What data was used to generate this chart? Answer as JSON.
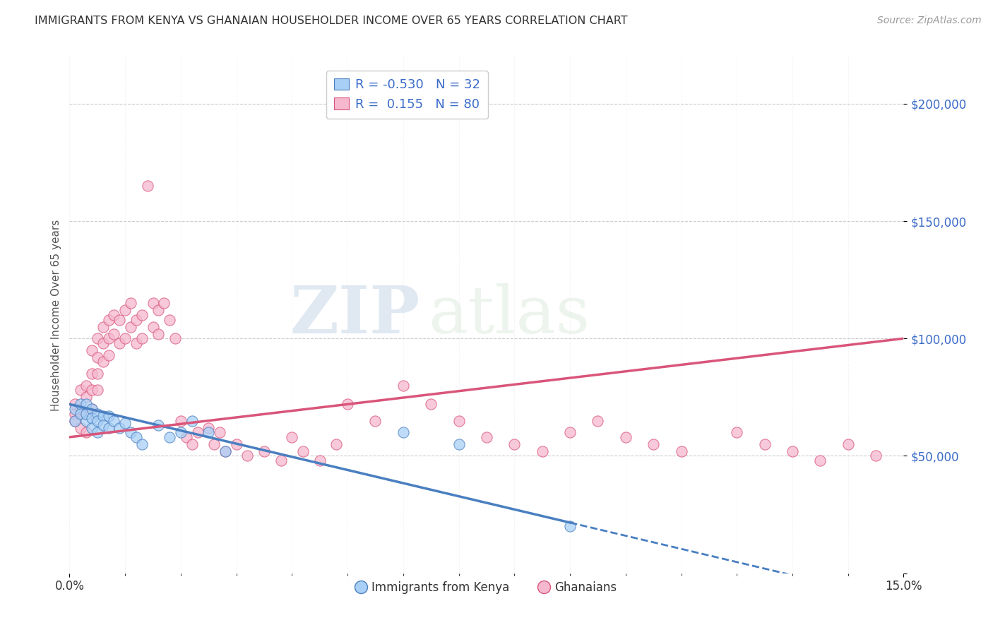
{
  "title": "IMMIGRANTS FROM KENYA VS GHANAIAN HOUSEHOLDER INCOME OVER 65 YEARS CORRELATION CHART",
  "source": "Source: ZipAtlas.com",
  "ylabel": "Householder Income Over 65 years",
  "xlim": [
    0.0,
    0.15
  ],
  "ylim": [
    0,
    220000
  ],
  "yticks": [
    0,
    50000,
    100000,
    150000,
    200000
  ],
  "ytick_labels": [
    "",
    "$50,000",
    "$100,000",
    "$150,000",
    "$200,000"
  ],
  "kenya_color": "#a8cff5",
  "kenya_color_dark": "#4a7fc1",
  "ghana_color": "#f5b8ce",
  "ghana_color_dark": "#d9557a",
  "R_kenya": -0.53,
  "N_kenya": 32,
  "R_ghana": 0.155,
  "N_ghana": 80,
  "kenya_intercept": 72000,
  "kenya_slope": -560000,
  "ghana_intercept": 58000,
  "ghana_slope": 280000,
  "kenya_scatter_x": [
    0.001,
    0.001,
    0.002,
    0.002,
    0.003,
    0.003,
    0.003,
    0.004,
    0.004,
    0.004,
    0.005,
    0.005,
    0.005,
    0.006,
    0.006,
    0.007,
    0.007,
    0.008,
    0.009,
    0.01,
    0.011,
    0.012,
    0.013,
    0.016,
    0.018,
    0.02,
    0.022,
    0.025,
    0.028,
    0.06,
    0.07,
    0.09
  ],
  "kenya_scatter_y": [
    70000,
    65000,
    72000,
    68000,
    72000,
    65000,
    68000,
    70000,
    66000,
    62000,
    68000,
    65000,
    60000,
    67000,
    63000,
    67000,
    62000,
    65000,
    62000,
    64000,
    60000,
    58000,
    55000,
    63000,
    58000,
    60000,
    65000,
    60000,
    52000,
    60000,
    55000,
    20000
  ],
  "ghana_scatter_x": [
    0.001,
    0.001,
    0.001,
    0.002,
    0.002,
    0.002,
    0.002,
    0.003,
    0.003,
    0.003,
    0.003,
    0.004,
    0.004,
    0.004,
    0.004,
    0.005,
    0.005,
    0.005,
    0.005,
    0.006,
    0.006,
    0.006,
    0.007,
    0.007,
    0.007,
    0.008,
    0.008,
    0.009,
    0.009,
    0.01,
    0.01,
    0.011,
    0.011,
    0.012,
    0.012,
    0.013,
    0.013,
    0.014,
    0.015,
    0.015,
    0.016,
    0.016,
    0.017,
    0.018,
    0.019,
    0.02,
    0.021,
    0.022,
    0.023,
    0.025,
    0.026,
    0.027,
    0.028,
    0.03,
    0.032,
    0.035,
    0.038,
    0.04,
    0.042,
    0.045,
    0.048,
    0.05,
    0.055,
    0.06,
    0.065,
    0.07,
    0.075,
    0.08,
    0.085,
    0.09,
    0.095,
    0.1,
    0.105,
    0.11,
    0.12,
    0.125,
    0.13,
    0.135,
    0.14,
    0.145
  ],
  "ghana_scatter_y": [
    68000,
    72000,
    65000,
    78000,
    68000,
    62000,
    70000,
    80000,
    75000,
    68000,
    60000,
    95000,
    85000,
    78000,
    70000,
    100000,
    92000,
    85000,
    78000,
    105000,
    98000,
    90000,
    108000,
    100000,
    93000,
    110000,
    102000,
    108000,
    98000,
    112000,
    100000,
    115000,
    105000,
    108000,
    98000,
    110000,
    100000,
    165000,
    115000,
    105000,
    112000,
    102000,
    115000,
    108000,
    100000,
    65000,
    58000,
    55000,
    60000,
    62000,
    55000,
    60000,
    52000,
    55000,
    50000,
    52000,
    48000,
    58000,
    52000,
    48000,
    55000,
    72000,
    65000,
    80000,
    72000,
    65000,
    58000,
    55000,
    52000,
    60000,
    65000,
    58000,
    55000,
    52000,
    60000,
    55000,
    52000,
    48000,
    55000,
    50000
  ],
  "watermark_zip": "ZIP",
  "watermark_atlas": "atlas",
  "legend_color": "#3a6bc9",
  "background_color": "#ffffff",
  "grid_color": "#cccccc"
}
